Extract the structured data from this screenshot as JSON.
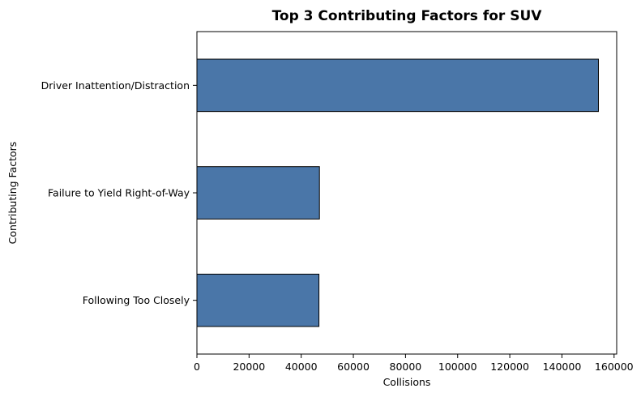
{
  "chart_data": {
    "type": "bar",
    "orientation": "horizontal",
    "title": "Top 3 Contributing Factors for SUV",
    "xlabel": "Collisions",
    "ylabel": "Contributing Factors",
    "categories": [
      "Driver Inattention/Distraction",
      "Failure to Yield Right-of-Way",
      "Following Too Closely"
    ],
    "values": [
      154000,
      47000,
      46800
    ],
    "xlim": [
      0,
      161000
    ],
    "xticks": [
      0,
      20000,
      40000,
      60000,
      80000,
      100000,
      120000,
      140000,
      160000
    ],
    "xtick_labels": [
      "0",
      "20000",
      "40000",
      "60000",
      "80000",
      "100000",
      "120000",
      "140000",
      "160000"
    ],
    "grid": false,
    "bar_color": "#4a76a8",
    "bar_edge_color": "#000000"
  }
}
